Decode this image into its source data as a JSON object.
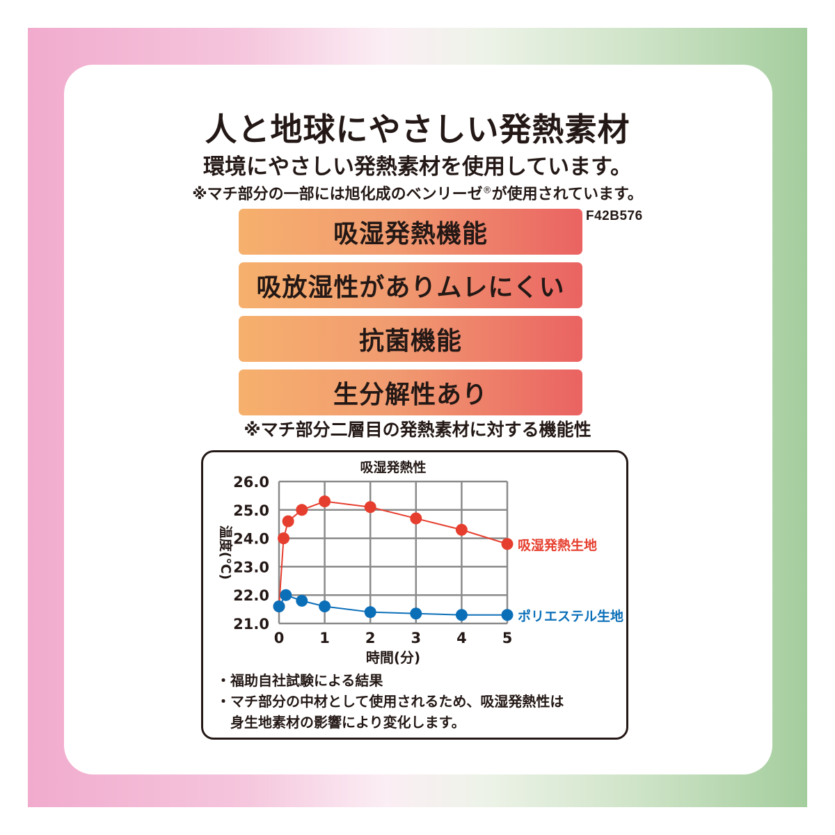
{
  "heading": {
    "title": "人と地球にやさしい発熱素材",
    "subtitle": "環境にやさしい発熱素材を使用しています。",
    "note_prefix": "※マチ部分の一部には旭化成のベンリーゼ",
    "note_mark": "®",
    "note_suffix": "が使用されています。",
    "product_code": "F42B576"
  },
  "features": [
    "吸湿発熱機能",
    "吸放湿性がありムレにくい",
    "抗菌機能",
    "生分解性あり"
  ],
  "features_note": "※マチ部分二層目の発熱素材に対する機能性",
  "chart_data": {
    "type": "line",
    "title": "吸湿発熱性",
    "xlabel": "時間(分)",
    "ylabel": "温度(℃)",
    "x_ticks": [
      "0",
      "1",
      "2",
      "3",
      "4",
      "5"
    ],
    "y_ticks": [
      "21.0",
      "22.0",
      "23.0",
      "24.0",
      "25.0",
      "26.0"
    ],
    "xlim": [
      0,
      5
    ],
    "ylim": [
      21,
      26
    ],
    "grid": true,
    "series": [
      {
        "name": "吸湿発熱生地",
        "color": "#e63e2e",
        "x": [
          0,
          0.1,
          0.2,
          0.5,
          1,
          2,
          3,
          4,
          5
        ],
        "y": [
          21.6,
          24.0,
          24.6,
          25.0,
          25.3,
          25.1,
          24.7,
          24.3,
          23.8
        ]
      },
      {
        "name": "ポリエステル生地",
        "color": "#0b6fb8",
        "x": [
          0,
          0.15,
          0.5,
          1,
          2,
          3,
          4,
          5
        ],
        "y": [
          21.6,
          22.0,
          21.8,
          21.6,
          21.4,
          21.35,
          21.3,
          21.3
        ]
      }
    ]
  },
  "footnotes": [
    "・福助自社試験による結果",
    "・マチ部分の中材として使用されるため、吸湿発熱性は",
    "　身生地素材の影響により変化します。"
  ]
}
